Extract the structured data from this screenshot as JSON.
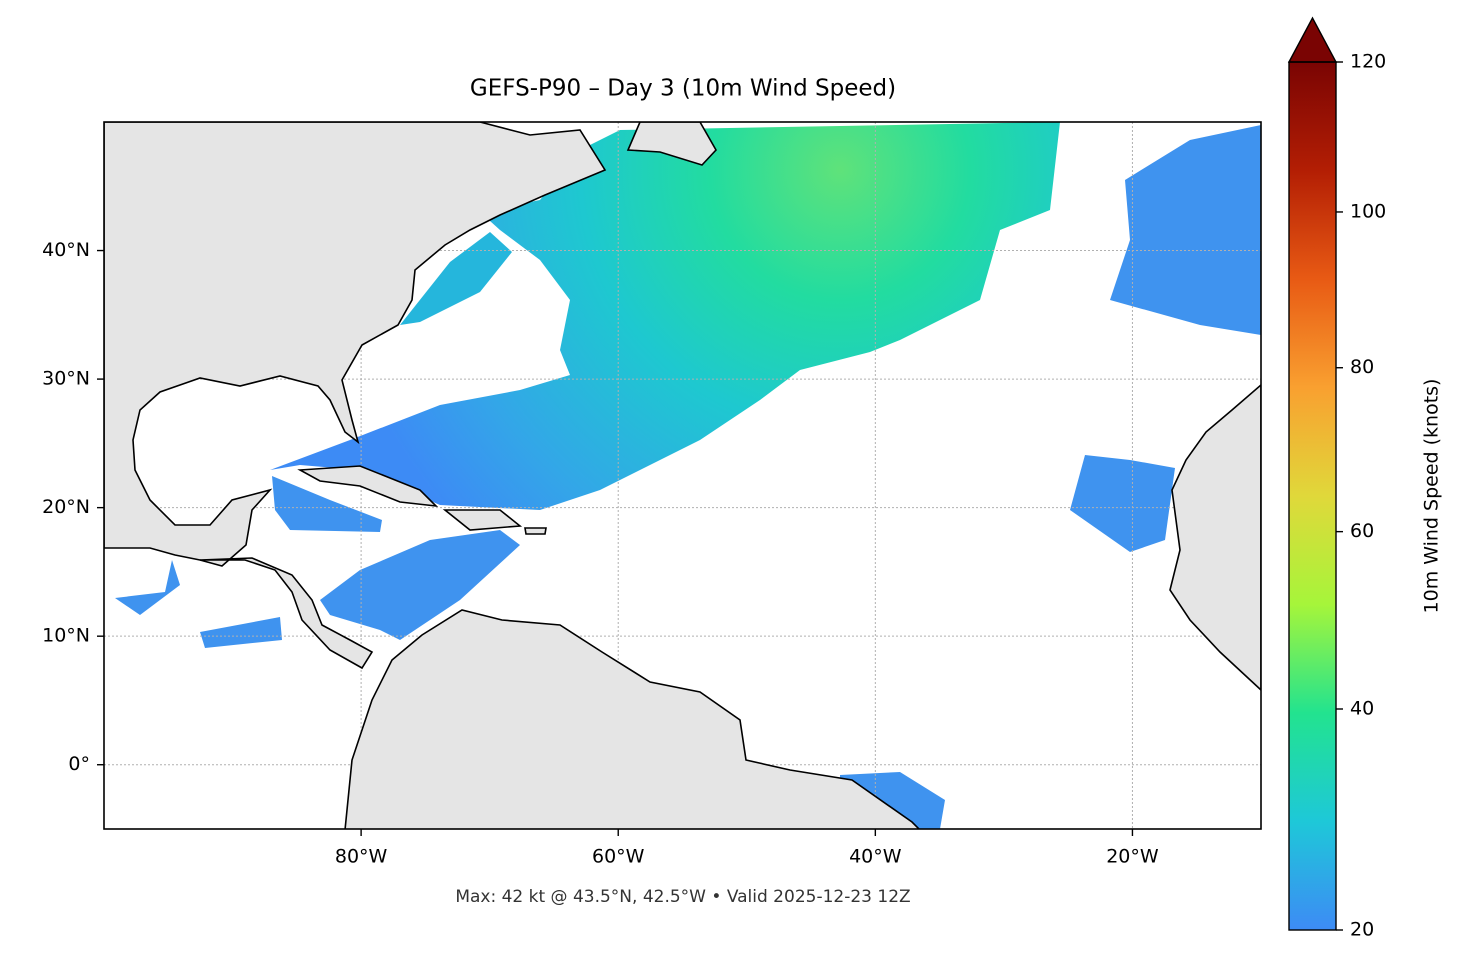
{
  "chart_data": {
    "type": "map",
    "title": "GEFS-P90 – Day 3 (10m Wind Speed)",
    "footnote": "Max: 42 kt @ 43.5°N, 42.5°W • Valid 2025-12-23 12Z",
    "xlim": [
      -100,
      -10
    ],
    "ylim": [
      -5,
      50
    ],
    "xticks": [
      {
        "value": -80,
        "label": "80°W"
      },
      {
        "value": -60,
        "label": "60°W"
      },
      {
        "value": -40,
        "label": "40°W"
      },
      {
        "value": -20,
        "label": "20°W"
      }
    ],
    "yticks": [
      {
        "value": 0,
        "label": "0°"
      },
      {
        "value": 10,
        "label": "10°N"
      },
      {
        "value": 20,
        "label": "20°N"
      },
      {
        "value": 30,
        "label": "30°N"
      },
      {
        "value": 40,
        "label": "40°N"
      }
    ],
    "grid": true,
    "colorbar": {
      "label": "10m Wind Speed (knots)",
      "lim": [
        20,
        120
      ],
      "ticks": [
        20,
        40,
        60,
        80,
        100,
        120
      ],
      "norm": "power",
      "gamma": 0.85,
      "colormap": [
        "#3d8bf5",
        "#1ec8d8",
        "#22e38f",
        "#a6f53a",
        "#e0d83a",
        "#f9a030",
        "#e85a14",
        "#b31e04",
        "#7a0403"
      ],
      "extend": "max"
    }
  }
}
